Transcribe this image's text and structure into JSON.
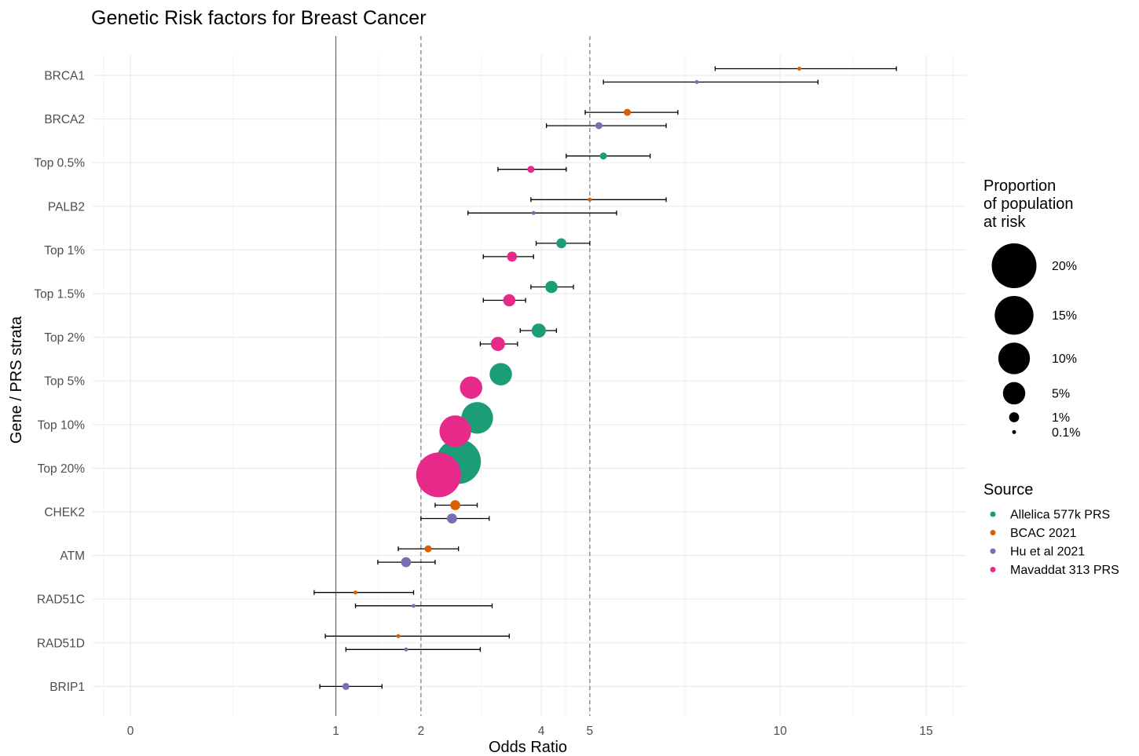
{
  "chart_data": {
    "type": "scatter",
    "title": "Genetic Risk factors for Breast Cancer",
    "xlabel": "Odds Ratio",
    "ylabel": "Gene / PRS strata",
    "x_scale": "sqrt",
    "xlim": [
      -1,
      16
    ],
    "x_ticks": [
      0,
      1,
      2,
      4,
      5,
      10,
      15
    ],
    "vlines": [
      {
        "x": 1,
        "style": "solid"
      },
      {
        "x": 2,
        "style": "dashed"
      },
      {
        "x": 5,
        "style": "dashed"
      }
    ],
    "grid": true,
    "categories": [
      "BRCA1",
      "BRCA2",
      "Top 0.5%",
      "PALB2",
      "Top 1%",
      "Top 1.5%",
      "Top 2%",
      "Top 5%",
      "Top 10%",
      "Top 20%",
      "CHEK2",
      "ATM",
      "RAD51C",
      "RAD51D",
      "BRIP1"
    ],
    "series": [
      {
        "name": "Allelica 577k PRS",
        "color": "#1B9E77",
        "points": [
          {
            "category": "Top 0.5%",
            "or": 5.3,
            "lo": 4.5,
            "hi": 6.4,
            "prop": 0.5
          },
          {
            "category": "Top 1%",
            "or": 4.4,
            "lo": 3.9,
            "hi": 5.0,
            "prop": 1
          },
          {
            "category": "Top 1.5%",
            "or": 4.2,
            "lo": 3.8,
            "hi": 4.65,
            "prop": 1.5
          },
          {
            "category": "Top 2%",
            "or": 3.95,
            "lo": 3.6,
            "hi": 4.3,
            "prop": 2
          },
          {
            "category": "Top 5%",
            "or": 3.25,
            "prop": 5
          },
          {
            "category": "Top 10%",
            "or": 2.85,
            "prop": 10
          },
          {
            "category": "Top 20%",
            "or": 2.55,
            "prop": 20
          }
        ]
      },
      {
        "name": "BCAC 2021",
        "color": "#D95F02",
        "points": [
          {
            "category": "BRCA1",
            "or": 10.6,
            "lo": 8.1,
            "hi": 13.9,
            "prop": 0.1
          },
          {
            "category": "BRCA2",
            "or": 5.85,
            "lo": 4.9,
            "hi": 7.1,
            "prop": 0.5
          },
          {
            "category": "PALB2",
            "or": 5.0,
            "lo": 3.8,
            "hi": 6.8,
            "prop": 0.1
          },
          {
            "category": "CHEK2",
            "or": 2.5,
            "lo": 2.2,
            "hi": 2.85,
            "prop": 1
          },
          {
            "category": "ATM",
            "or": 2.1,
            "lo": 1.7,
            "hi": 2.55,
            "prop": 0.5
          },
          {
            "category": "RAD51C",
            "or": 1.2,
            "lo": 0.8,
            "hi": 1.9,
            "prop": 0.1
          },
          {
            "category": "RAD51D",
            "or": 1.7,
            "lo": 0.9,
            "hi": 3.4,
            "prop": 0.05
          }
        ]
      },
      {
        "name": "Hu et al 2021",
        "color": "#7570B3",
        "points": [
          {
            "category": "BRCA1",
            "or": 7.6,
            "lo": 5.3,
            "hi": 11.2,
            "prop": 0.1
          },
          {
            "category": "BRCA2",
            "or": 5.2,
            "lo": 4.1,
            "hi": 6.8,
            "prop": 0.5
          },
          {
            "category": "PALB2",
            "or": 3.85,
            "lo": 2.7,
            "hi": 5.6,
            "prop": 0.1
          },
          {
            "category": "CHEK2",
            "or": 2.45,
            "lo": 2.0,
            "hi": 3.05,
            "prop": 1
          },
          {
            "category": "ATM",
            "or": 1.8,
            "lo": 1.45,
            "hi": 2.2,
            "prop": 1
          },
          {
            "category": "RAD51C",
            "or": 1.9,
            "lo": 1.2,
            "hi": 3.1,
            "prop": 0.05
          },
          {
            "category": "RAD51D",
            "or": 1.8,
            "lo": 1.1,
            "hi": 2.9,
            "prop": 0.05
          },
          {
            "category": "BRIP1",
            "or": 1.1,
            "lo": 0.85,
            "hi": 1.5,
            "prop": 0.5
          }
        ]
      },
      {
        "name": "Mavaddat 313 PRS",
        "color": "#E7298A",
        "points": [
          {
            "category": "Top 0.5%",
            "or": 3.8,
            "lo": 3.2,
            "hi": 4.5,
            "prop": 0.5
          },
          {
            "category": "Top 1%",
            "or": 3.45,
            "lo": 2.95,
            "hi": 3.85,
            "prop": 1
          },
          {
            "category": "Top 1.5%",
            "or": 3.4,
            "lo": 2.95,
            "hi": 3.7,
            "prop": 1.5
          },
          {
            "category": "Top 2%",
            "or": 3.2,
            "lo": 2.9,
            "hi": 3.55,
            "prop": 2
          },
          {
            "category": "Top 5%",
            "or": 2.75,
            "prop": 5
          },
          {
            "category": "Top 10%",
            "or": 2.5,
            "prop": 10
          },
          {
            "category": "Top 20%",
            "or": 2.25,
            "prop": 20
          }
        ]
      }
    ],
    "size_legend": {
      "title": "Proportion\nof population\nat risk",
      "entries": [
        {
          "label": "20%",
          "prop": 20
        },
        {
          "label": "15%",
          "prop": 15
        },
        {
          "label": "10%",
          "prop": 10
        },
        {
          "label": "5%",
          "prop": 5
        },
        {
          "label": "1%",
          "prop": 1
        },
        {
          "label": "0.1%",
          "prop": 0.1
        }
      ]
    },
    "color_legend": {
      "title": "Source",
      "position": "right"
    }
  }
}
